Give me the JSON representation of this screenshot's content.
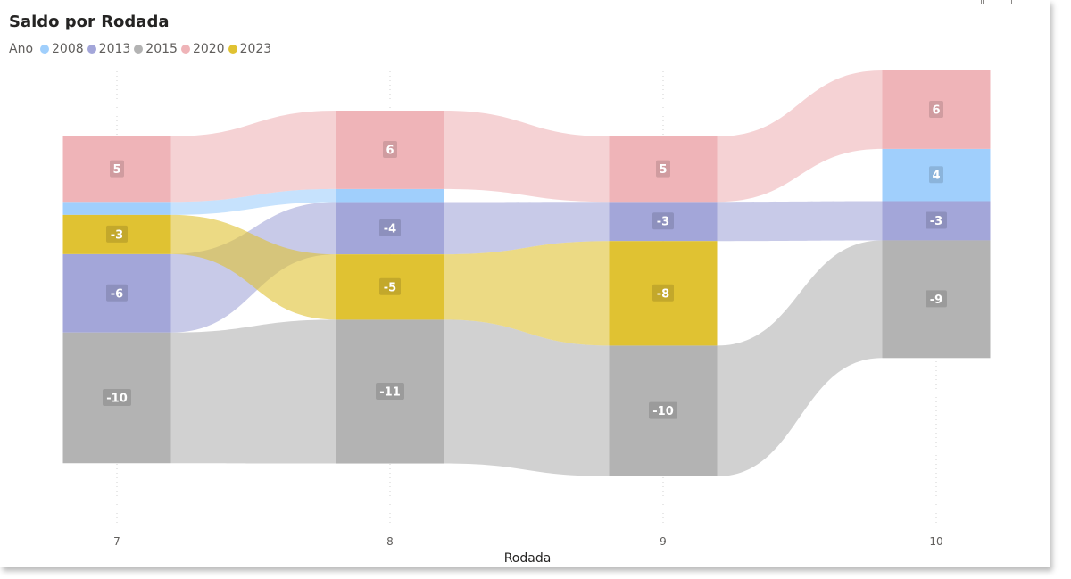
{
  "chart_data": {
    "type": "ribbon",
    "title": "Saldo por Rodada",
    "legend_title": "Ano",
    "legend_position": "top-left",
    "xlabel": "Rodada",
    "categories": [
      "7",
      "8",
      "9",
      "10"
    ],
    "series": [
      {
        "name": "2008",
        "color": "#a0cffc",
        "values": [
          1,
          1,
          0,
          4
        ],
        "labels": [
          "",
          "",
          "",
          "4"
        ]
      },
      {
        "name": "2013",
        "color": "#a3a6d9",
        "values": [
          -6,
          -4,
          -3,
          -3
        ],
        "labels": [
          "-6",
          "-4",
          "-3",
          "-3"
        ]
      },
      {
        "name": "2015",
        "color": "#b3b3b3",
        "values": [
          -10,
          -11,
          -10,
          -9
        ],
        "labels": [
          "-10",
          "-11",
          "-10",
          "-9"
        ]
      },
      {
        "name": "2020",
        "color": "#efb4b8",
        "values": [
          5,
          6,
          5,
          6
        ],
        "labels": [
          "5",
          "6",
          "5",
          "6"
        ]
      },
      {
        "name": "2023",
        "color": "#e0c232",
        "values": [
          -3,
          -5,
          -8,
          0
        ],
        "labels": [
          "-3",
          "-5",
          "-8",
          ""
        ]
      }
    ],
    "stack_order_top_to_bottom": [
      [
        "2020",
        "2008",
        "2023",
        "2013",
        "2015"
      ],
      [
        "2020",
        "2008",
        "2013",
        "2023",
        "2015"
      ],
      [
        "2020",
        "2013",
        "2023",
        "2015"
      ],
      [
        "2020",
        "2008",
        "2013",
        "2015"
      ]
    ],
    "gridlines": "vertical-dotted"
  }
}
